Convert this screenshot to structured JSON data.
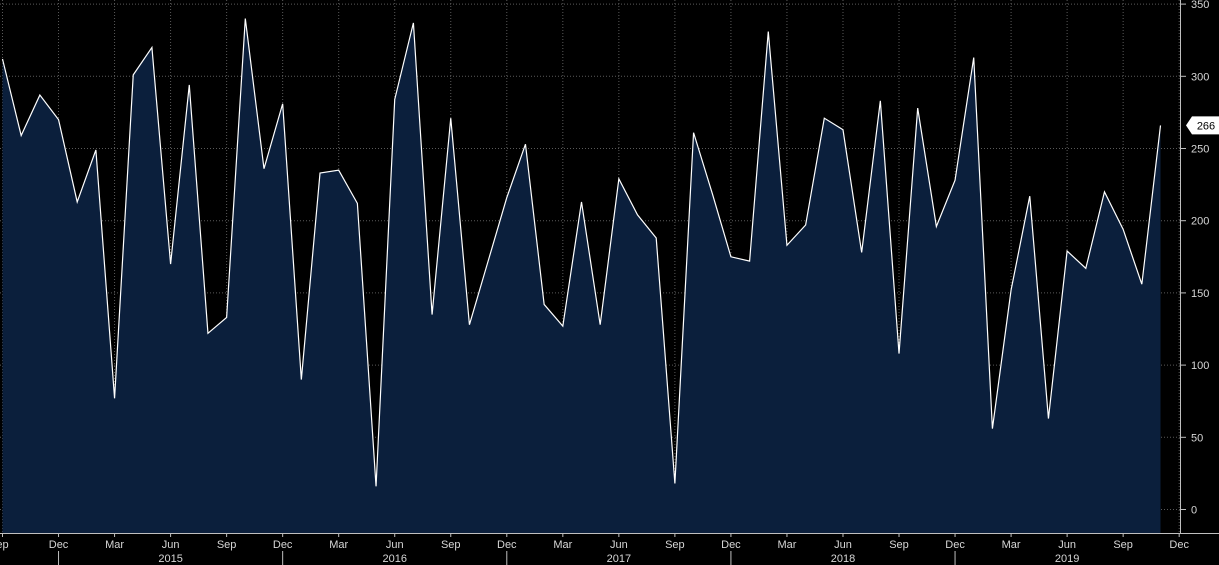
{
  "chart_data": {
    "type": "area",
    "title": "",
    "xlabel": "",
    "ylabel": "",
    "ylim": [
      -15,
      350
    ],
    "y_ticks": [
      0,
      50,
      100,
      150,
      200,
      250,
      300,
      350
    ],
    "y_axis_position": "right",
    "grid": true,
    "grid_style": "dotted",
    "x_start": "2014-09",
    "x_end": "2019-11",
    "x": [
      "2014-09",
      "2014-10",
      "2014-11",
      "2014-12",
      "2015-01",
      "2015-02",
      "2015-03",
      "2015-04",
      "2015-05",
      "2015-06",
      "2015-07",
      "2015-08",
      "2015-09",
      "2015-10",
      "2015-11",
      "2015-12",
      "2016-01",
      "2016-02",
      "2016-03",
      "2016-04",
      "2016-05",
      "2016-06",
      "2016-07",
      "2016-08",
      "2016-09",
      "2016-10",
      "2016-11",
      "2016-12",
      "2017-01",
      "2017-02",
      "2017-03",
      "2017-04",
      "2017-05",
      "2017-06",
      "2017-07",
      "2017-08",
      "2017-09",
      "2017-10",
      "2017-11",
      "2017-12",
      "2018-01",
      "2018-02",
      "2018-03",
      "2018-04",
      "2018-05",
      "2018-06",
      "2018-07",
      "2018-08",
      "2018-09",
      "2018-10",
      "2018-11",
      "2018-12",
      "2019-01",
      "2019-02",
      "2019-03",
      "2019-04",
      "2019-05",
      "2019-06",
      "2019-07",
      "2019-08",
      "2019-09",
      "2019-10",
      "2019-11"
    ],
    "values": [
      312,
      259,
      287,
      270,
      213,
      249,
      77,
      301,
      320,
      170,
      294,
      122,
      133,
      340,
      236,
      281,
      90,
      233,
      235,
      212,
      16,
      284,
      337,
      135,
      271,
      128,
      172,
      216,
      253,
      142,
      127,
      213,
      128,
      229,
      204,
      188,
      18,
      261,
      219,
      175,
      172,
      331,
      183,
      197,
      271,
      263,
      178,
      283,
      108,
      278,
      196,
      228,
      313,
      56,
      152,
      217,
      63,
      179,
      167,
      220,
      194,
      156,
      266
    ],
    "month_ticks": [
      {
        "label": "ep",
        "date": "2014-09"
      },
      {
        "label": "Dec",
        "date": "2014-12"
      },
      {
        "label": "Mar",
        "date": "2015-03"
      },
      {
        "label": "Jun",
        "date": "2015-06"
      },
      {
        "label": "Sep",
        "date": "2015-09"
      },
      {
        "label": "Dec",
        "date": "2015-12"
      },
      {
        "label": "Mar",
        "date": "2016-03"
      },
      {
        "label": "Jun",
        "date": "2016-06"
      },
      {
        "label": "Sep",
        "date": "2016-09"
      },
      {
        "label": "Dec",
        "date": "2016-12"
      },
      {
        "label": "Mar",
        "date": "2017-03"
      },
      {
        "label": "Jun",
        "date": "2017-06"
      },
      {
        "label": "Sep",
        "date": "2017-09"
      },
      {
        "label": "Dec",
        "date": "2017-12"
      },
      {
        "label": "Mar",
        "date": "2018-03"
      },
      {
        "label": "Jun",
        "date": "2018-06"
      },
      {
        "label": "Sep",
        "date": "2018-09"
      },
      {
        "label": "Dec",
        "date": "2018-12"
      },
      {
        "label": "Mar",
        "date": "2019-03"
      },
      {
        "label": "Jun",
        "date": "2019-06"
      },
      {
        "label": "Sep",
        "date": "2019-09"
      },
      {
        "label": "Dec",
        "date": "2019-12"
      }
    ],
    "year_labels": [
      {
        "label": "2015",
        "date": "2015-06"
      },
      {
        "label": "2016",
        "date": "2016-06"
      },
      {
        "label": "2017",
        "date": "2017-06"
      },
      {
        "label": "2018",
        "date": "2018-06"
      },
      {
        "label": "2019",
        "date": "2019-06"
      }
    ],
    "year_separators": [
      "2014-12",
      "2015-12",
      "2016-12",
      "2017-12",
      "2018-12"
    ],
    "last_value_label": "266",
    "colors": {
      "background": "#000000",
      "area_fill": "#0b1f3c",
      "line": "#ffffff",
      "grid": "#5a5a5a",
      "axis": "#bfbfbf",
      "text": "#d6d6d6",
      "last_label_bg": "#ffffff"
    }
  }
}
